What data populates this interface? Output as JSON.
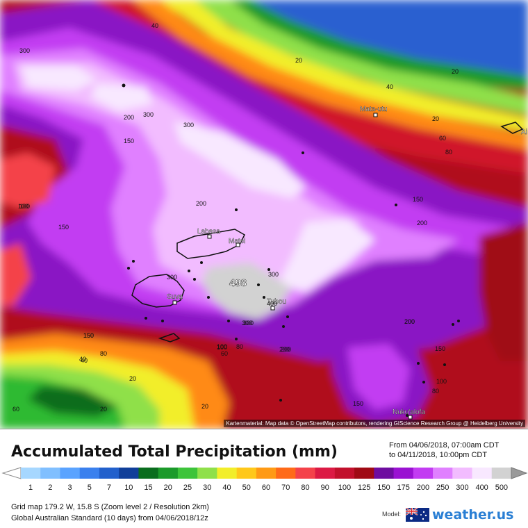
{
  "map": {
    "places": [
      {
        "name": "Mata-utu"
      },
      {
        "name": "Labasa"
      },
      {
        "name": "Matei"
      },
      {
        "name": "Suva"
      },
      {
        "name": "Tubou"
      },
      {
        "name": "Nuku'alofa"
      },
      {
        "name": "Ai"
      }
    ],
    "max_value_label": "498",
    "contour_labels": [
      "40",
      "20",
      "300",
      "20",
      "40",
      "20",
      "60",
      "80",
      "100",
      "300",
      "200",
      "300",
      "150",
      "300",
      "200",
      "100",
      "150",
      "200",
      "150",
      "300",
      "300",
      "400",
      "300",
      "200",
      "150",
      "100",
      "150",
      "80",
      "60",
      "100",
      "80",
      "40",
      "200",
      "20",
      "20",
      "150",
      "200",
      "150",
      "100",
      "80",
      "60",
      "40",
      "20",
      "200"
    ],
    "credit": "Kartenmaterial: Map data © OpenStreetMap contributors, rendering GIScience Research Group @ Heidelberg University"
  },
  "legend": {
    "title": "Accumulated Total Precipitation (mm)",
    "from_line": "From 04/06/2018, 07:00am CDT",
    "to_line": "to 04/11/2018, 10:00pm CDT",
    "scale_values": [
      "1",
      "2",
      "3",
      "5",
      "7",
      "10",
      "15",
      "20",
      "25",
      "30",
      "40",
      "50",
      "60",
      "70",
      "80",
      "90",
      "100",
      "125",
      "150",
      "175",
      "200",
      "250",
      "300",
      "400",
      "500"
    ],
    "scale_colors": [
      "#a6d7ff",
      "#80bfff",
      "#5aa3ff",
      "#3a80ee",
      "#2260cc",
      "#103f9a",
      "#0a6d1e",
      "#1b9a2a",
      "#3dc43a",
      "#8fe04a",
      "#f2ee2a",
      "#ffc81a",
      "#ff9a14",
      "#ff6a18",
      "#f4424a",
      "#dc1a44",
      "#c2102c",
      "#a00a14",
      "#6e0da0",
      "#9a12d2",
      "#c23cf2",
      "#e080ff",
      "#f2bcff",
      "#f8e8ff",
      "#d2d2d2"
    ],
    "grid_line": "Grid map 179.2 W, 15.8 S (Zoom level 2 / Resolution 2km)",
    "model_line": "Global Australian Standard (10 days) from 04/06/2018/12z",
    "model_label": "Model:",
    "brand": "weather.us"
  }
}
